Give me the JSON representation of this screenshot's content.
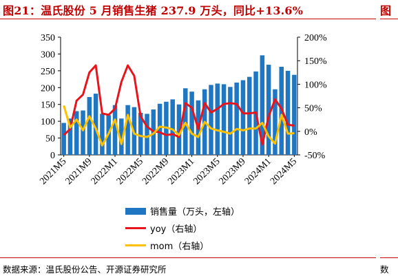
{
  "header": {
    "title": "图21：温氏股份 5 月销售生猪 237.9 万头，同比+13.6%",
    "next_title_fragment": "图"
  },
  "footer": {
    "source": "数据来源：温氏股份公告、开源证券研究所",
    "next_source_fragment": "数"
  },
  "colors": {
    "title": "#c00000",
    "bar": "#1f77c4",
    "yoy": "#e8141b",
    "mom": "#ffc000"
  },
  "chart_data": {
    "type": "bar",
    "x": [
      "2021M5",
      "2021M6",
      "2021M7",
      "2021M8",
      "2021M9",
      "2021M10",
      "2021M11",
      "2021M12",
      "2022M1",
      "2022M2",
      "2022M3",
      "2022M4",
      "2022M5",
      "2022M6",
      "2022M7",
      "2022M8",
      "2022M9",
      "2022M10",
      "2022M11",
      "2022M12",
      "2023M1",
      "2023M2",
      "2023M3",
      "2023M4",
      "2023M5",
      "2023M6",
      "2023M7",
      "2023M8",
      "2023M9",
      "2023M10",
      "2023M11",
      "2023M12",
      "2024M1",
      "2024M2",
      "2024M3",
      "2024M4",
      "2024M5"
    ],
    "x_tick_labels": [
      "2021M5",
      "2021M9",
      "2022M1",
      "2022M5",
      "2022M9",
      "2023M1",
      "2023M5",
      "2023M9",
      "2024M1",
      "2024M5"
    ],
    "series": [
      {
        "name": "销售量（万头，左轴）",
        "type": "bar",
        "axis": "left",
        "color": "#1f77c4",
        "values": [
          95,
          108,
          130,
          132,
          172,
          182,
          122,
          118,
          148,
          108,
          148,
          142,
          125,
          122,
          135,
          152,
          158,
          165,
          150,
          198,
          188,
          162,
          195,
          208,
          212,
          210,
          202,
          215,
          222,
          232,
          248,
          296,
          268,
          195,
          262,
          250,
          238
        ]
      },
      {
        "name": "yoy（右轴）",
        "type": "line",
        "axis": "right",
        "color": "#e8141b",
        "values": [
          -8,
          5,
          65,
          78,
          125,
          140,
          38,
          35,
          48,
          105,
          140,
          118,
          32,
          10,
          0,
          -2,
          -8,
          -6,
          -12,
          60,
          50,
          5,
          60,
          40,
          48,
          58,
          60,
          58,
          38,
          38,
          40,
          -28,
          32,
          68,
          48,
          14,
          12
        ]
      },
      {
        "name": "mom（右轴）",
        "type": "line",
        "axis": "right",
        "color": "#ffc000",
        "values": [
          55,
          8,
          25,
          2,
          32,
          6,
          -30,
          -5,
          25,
          -27,
          35,
          -5,
          -10,
          -12,
          -5,
          10,
          8,
          4,
          -8,
          18,
          -5,
          -12,
          20,
          6,
          2,
          -1,
          -5,
          5,
          2,
          6,
          6,
          18,
          -11,
          -26,
          35,
          -5,
          -4
        ]
      }
    ],
    "y_left": {
      "min": 0,
      "max": 350,
      "ticks": [
        0,
        50,
        100,
        150,
        200,
        250,
        300,
        350
      ]
    },
    "y_right": {
      "min": -50,
      "max": 200,
      "ticks": [
        "-50%",
        "0%",
        "50%",
        "100%",
        "150%",
        "200%"
      ]
    },
    "grid": false,
    "legend_position": "bottom"
  }
}
